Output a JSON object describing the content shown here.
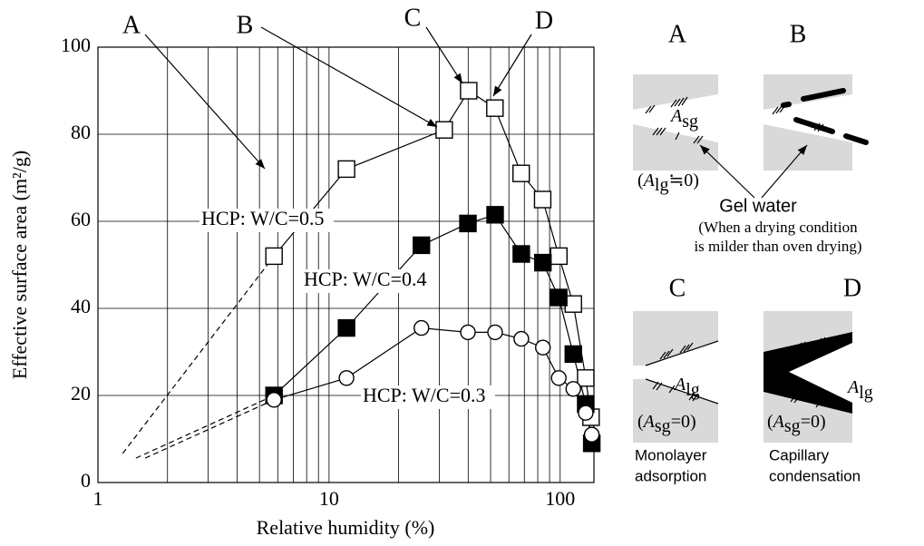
{
  "chart_data": {
    "type": "line",
    "x_label": "Relative humidity (%)",
    "y_label": "Effective surface area (m²/g)",
    "log_x": true,
    "grid": true,
    "xlim": [
      1,
      140
    ],
    "ylim": [
      0,
      100
    ],
    "xticks": [
      1,
      10,
      100
    ],
    "yticks": [
      0,
      20,
      40,
      60,
      80,
      100
    ],
    "xminor": [
      2,
      3,
      4,
      5,
      6,
      7,
      8,
      9,
      20,
      30,
      40,
      50,
      60,
      70,
      80,
      90
    ],
    "series": [
      {
        "name": "HCP: W/C=0.5",
        "marker": "square",
        "color": "#000000",
        "fill": "#ffffff",
        "x": [
          5.78,
          11.9,
          31.5,
          40.2,
          52.2,
          67.8,
          84.0,
          98.7,
          114,
          129,
          136
        ],
        "values": [
          52,
          72,
          81,
          90,
          86,
          71,
          65,
          52,
          41,
          24,
          15
        ]
      },
      {
        "name": "HCP: W/C=0.4",
        "marker": "square",
        "color": "#000000",
        "fill": "#000000",
        "x": [
          5.78,
          11.9,
          25.1,
          39.9,
          52.3,
          67.9,
          84.2,
          98.6,
          114,
          129,
          137
        ],
        "values": [
          20,
          35.5,
          54.5,
          59.5,
          61.5,
          52.5,
          50.5,
          42.5,
          29.5,
          18,
          9
        ]
      },
      {
        "name": "HCP: W/C=0.3",
        "marker": "circle",
        "color": "#000000",
        "fill": "#ffffff",
        "x": [
          5.78,
          11.9,
          25.1,
          39.9,
          52.3,
          67.9,
          84.2,
          98.6,
          114,
          129,
          137
        ],
        "values": [
          19,
          24,
          35.5,
          34.5,
          34.5,
          33,
          31,
          24,
          21.5,
          16,
          11
        ]
      }
    ],
    "extrapolations": [
      {
        "x": [
          1.28,
          5.78
        ],
        "values": [
          6.7,
          52
        ]
      },
      {
        "x": [
          1.46,
          5.78
        ],
        "values": [
          5.6,
          20
        ]
      },
      {
        "x": [
          1.6,
          5.78
        ],
        "values": [
          5.6,
          19
        ]
      }
    ],
    "callouts": [
      "A",
      "B",
      "C",
      "D"
    ]
  },
  "diagram": {
    "panels": [
      {
        "label": "A",
        "surface": {
          "symbol": "A",
          "sub": "sg"
        },
        "note": {
          "prefix": "(",
          "symbol": "A",
          "sub": "lg",
          "suffix": "≒0)"
        }
      },
      {
        "label": "B"
      },
      {
        "label": "C",
        "surface": {
          "symbol": "A",
          "sub": "lg"
        },
        "note": {
          "prefix": "(",
          "symbol": "A",
          "sub": "sg",
          "suffix": "=0)"
        },
        "caption": [
          "Monolayer",
          "adsorption"
        ]
      },
      {
        "label": "D",
        "surface": {
          "symbol": "A",
          "sub": "lg"
        },
        "note": {
          "prefix": "(",
          "symbol": "A",
          "sub": "sg",
          "suffix": "=0)"
        },
        "caption": [
          "Capillary",
          "condensation"
        ]
      }
    ],
    "gel_water": "Gel water",
    "gel_note": [
      "(When a drying condition",
      "is milder than oven drying)"
    ]
  }
}
